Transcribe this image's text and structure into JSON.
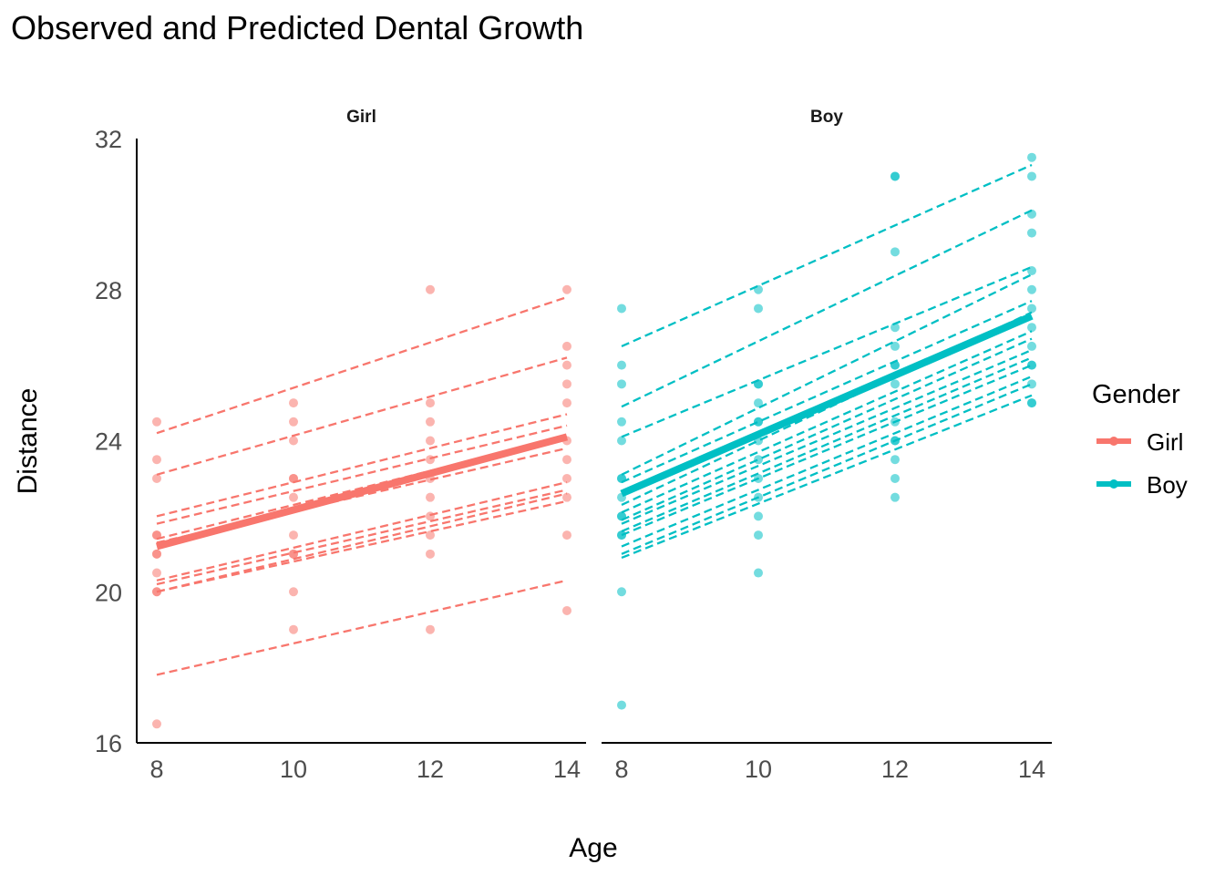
{
  "chart_data": {
    "type": "scatter",
    "title": "Observed and Predicted Dental Growth",
    "xlabel": "Age",
    "ylabel": "Distance",
    "xlim": [
      8,
      14
    ],
    "ylim": [
      16,
      32
    ],
    "x_ticks": [
      8,
      10,
      12,
      14
    ],
    "y_ticks": [
      16,
      20,
      24,
      28,
      32
    ],
    "grid": false,
    "legend_title": "Gender",
    "legend_position": "right",
    "panels": [
      {
        "name": "Girl",
        "color": "#F8766D",
        "points": [
          {
            "x": 8,
            "values": [
              24.5,
              23.5,
              23,
              21.5,
              21.5,
              21,
              21,
              20.5,
              20,
              20,
              16.5
            ]
          },
          {
            "x": 10,
            "values": [
              25,
              24.5,
              24,
              23,
              23,
              22.5,
              21.5,
              21,
              21,
              20,
              19
            ]
          },
          {
            "x": 12,
            "values": [
              28,
              25,
              24.5,
              24,
              23.5,
              23,
              22.5,
              22,
              21.5,
              21,
              19
            ]
          },
          {
            "x": 14,
            "values": [
              28,
              26.5,
              26,
              25.5,
              25,
              24,
              23.5,
              23,
              22.5,
              21.5,
              19.5
            ]
          }
        ],
        "individual_fits": [
          {
            "x": [
              8,
              14
            ],
            "y": [
              24.2,
              27.8
            ]
          },
          {
            "x": [
              8,
              14
            ],
            "y": [
              23.1,
              26.2
            ]
          },
          {
            "x": [
              8,
              14
            ],
            "y": [
              22.0,
              24.7
            ]
          },
          {
            "x": [
              8,
              14
            ],
            "y": [
              21.8,
              24.4
            ]
          },
          {
            "x": [
              8,
              14
            ],
            "y": [
              21.4,
              24.1
            ]
          },
          {
            "x": [
              8,
              14
            ],
            "y": [
              21.3,
              23.8
            ]
          },
          {
            "x": [
              8,
              14
            ],
            "y": [
              20.3,
              22.9
            ]
          },
          {
            "x": [
              8,
              14
            ],
            "y": [
              20.2,
              22.7
            ]
          },
          {
            "x": [
              8,
              14
            ],
            "y": [
              20.0,
              22.6
            ]
          },
          {
            "x": [
              8,
              14
            ],
            "y": [
              20.0,
              22.4
            ]
          },
          {
            "x": [
              8,
              14
            ],
            "y": [
              17.8,
              20.3
            ]
          }
        ],
        "population_fit": {
          "x": [
            8,
            14
          ],
          "y": [
            21.2,
            24.1
          ]
        }
      },
      {
        "name": "Boy",
        "color": "#00BFC4",
        "points": [
          {
            "x": 8,
            "values": [
              27.5,
              26,
              25.5,
              24.5,
              24,
              23,
              23,
              22.5,
              22,
              22,
              21.5,
              21.5,
              20,
              17
            ]
          },
          {
            "x": 10,
            "values": [
              28,
              27.5,
              25.5,
              25.5,
              25,
              24.5,
              24.5,
              24,
              23.5,
              23,
              22.5,
              22,
              21.5,
              20.5
            ]
          },
          {
            "x": 12,
            "values": [
              31,
              31,
              29,
              27,
              26.5,
              26,
              26,
              25.5,
              24.5,
              24,
              24,
              23.5,
              23,
              22.5
            ]
          },
          {
            "x": 14,
            "values": [
              31.5,
              31,
              30,
              29.5,
              28.5,
              28,
              27.5,
              27,
              26.5,
              26,
              26,
              25.5,
              25,
              25
            ]
          }
        ],
        "individual_fits": [
          {
            "x": [
              8,
              14
            ],
            "y": [
              26.5,
              31.3
            ]
          },
          {
            "x": [
              8,
              14
            ],
            "y": [
              24.9,
              30.1
            ]
          },
          {
            "x": [
              8,
              14
            ],
            "y": [
              24.1,
              28.6
            ]
          },
          {
            "x": [
              8,
              14
            ],
            "y": [
              23.1,
              28.4
            ]
          },
          {
            "x": [
              8,
              14
            ],
            "y": [
              22.9,
              27.7
            ]
          },
          {
            "x": [
              8,
              14
            ],
            "y": [
              22.3,
              27.4
            ]
          },
          {
            "x": [
              8,
              14
            ],
            "y": [
              22.1,
              26.9
            ]
          },
          {
            "x": [
              8,
              14
            ],
            "y": [
              21.9,
              26.7
            ]
          },
          {
            "x": [
              8,
              14
            ],
            "y": [
              21.8,
              26.4
            ]
          },
          {
            "x": [
              8,
              14
            ],
            "y": [
              21.6,
              26.2
            ]
          },
          {
            "x": [
              8,
              14
            ],
            "y": [
              21.5,
              26.0
            ]
          },
          {
            "x": [
              8,
              14
            ],
            "y": [
              21.2,
              25.7
            ]
          },
          {
            "x": [
              8,
              14
            ],
            "y": [
              21.0,
              25.5
            ]
          },
          {
            "x": [
              8,
              14
            ],
            "y": [
              20.9,
              25.2
            ]
          }
        ],
        "population_fit": {
          "x": [
            8,
            14
          ],
          "y": [
            22.6,
            27.3
          ]
        }
      }
    ]
  }
}
